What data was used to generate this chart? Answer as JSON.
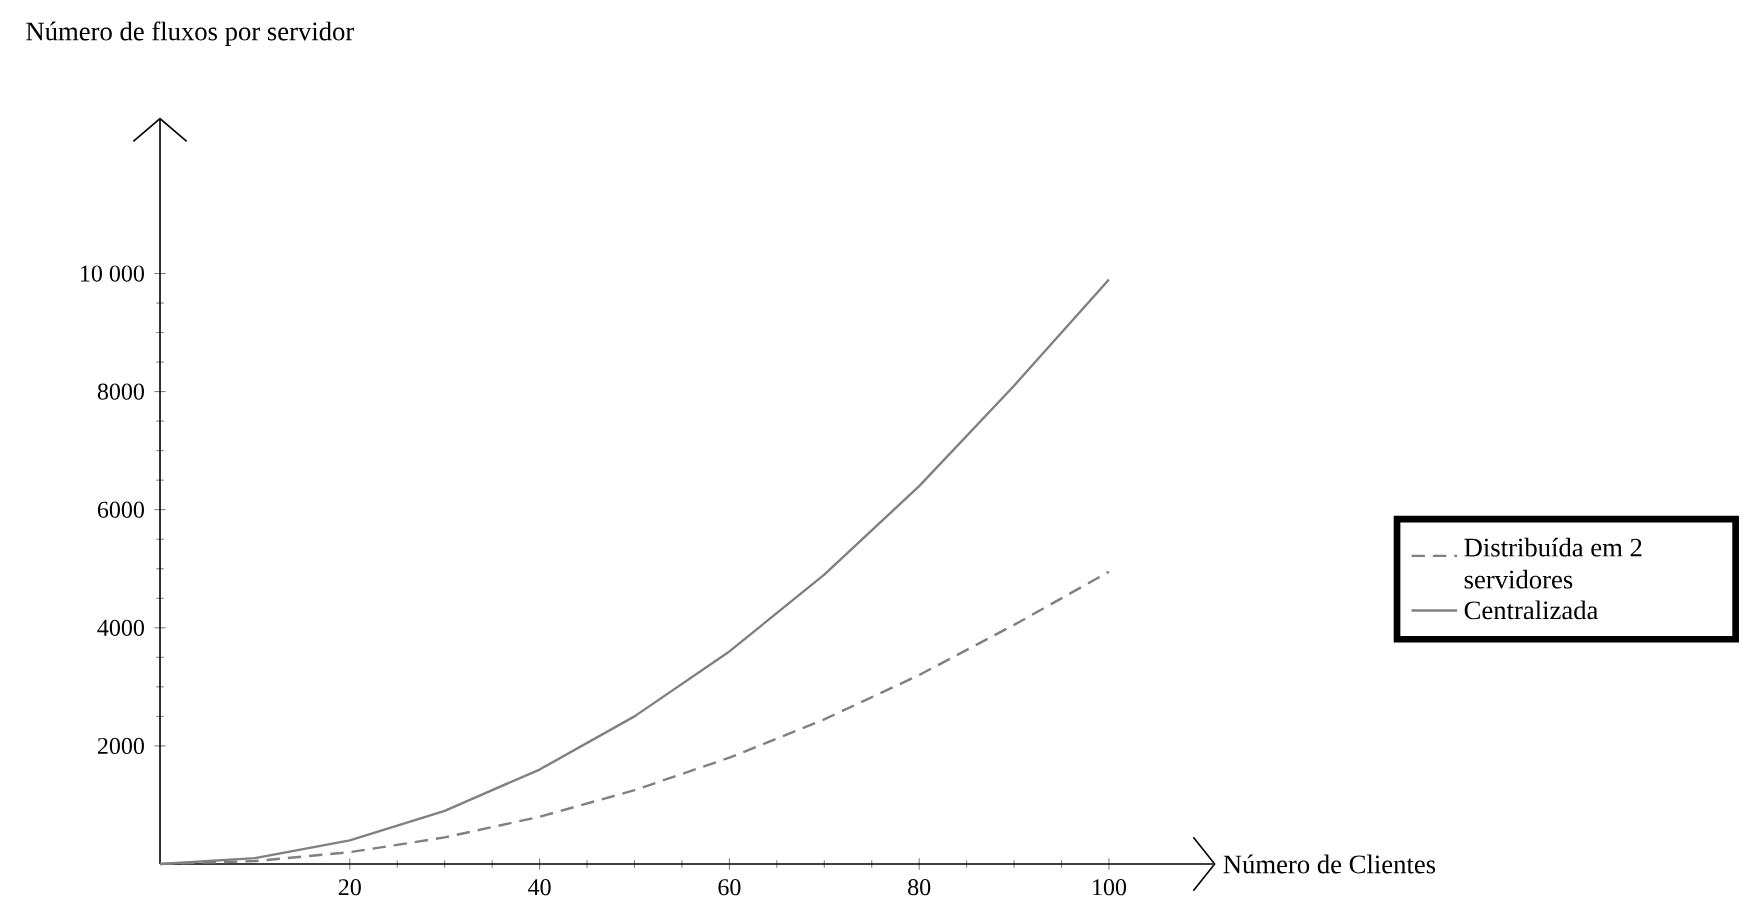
{
  "chart_data": {
    "type": "line",
    "xlabel": "Número de Clientes",
    "ylabel": "Número de fluxos por servidor",
    "x": [
      0,
      10,
      20,
      30,
      40,
      50,
      60,
      70,
      80,
      90,
      100
    ],
    "series": [
      {
        "name": "Distribuída em 2 servidores",
        "color": "#808080",
        "line_style": "dashed",
        "values": [
          0,
          50,
          200,
          450,
          800,
          1250,
          1800,
          2450,
          3200,
          4050,
          4950
        ]
      },
      {
        "name": "Centralizada",
        "color": "#808080",
        "line_style": "solid",
        "values": [
          0,
          100,
          400,
          900,
          1600,
          2500,
          3600,
          4900,
          6400,
          8100,
          9900
        ]
      }
    ],
    "xlim": [
      0,
      111
    ],
    "ylim": [
      0,
      12600
    ],
    "xticks": [
      20,
      40,
      60,
      80,
      100
    ],
    "yticks": [
      2000,
      4000,
      6000,
      8000,
      {
        "value": 10000,
        "label": "10 000"
      }
    ],
    "grid": false,
    "legend": "right",
    "marker": "none"
  }
}
